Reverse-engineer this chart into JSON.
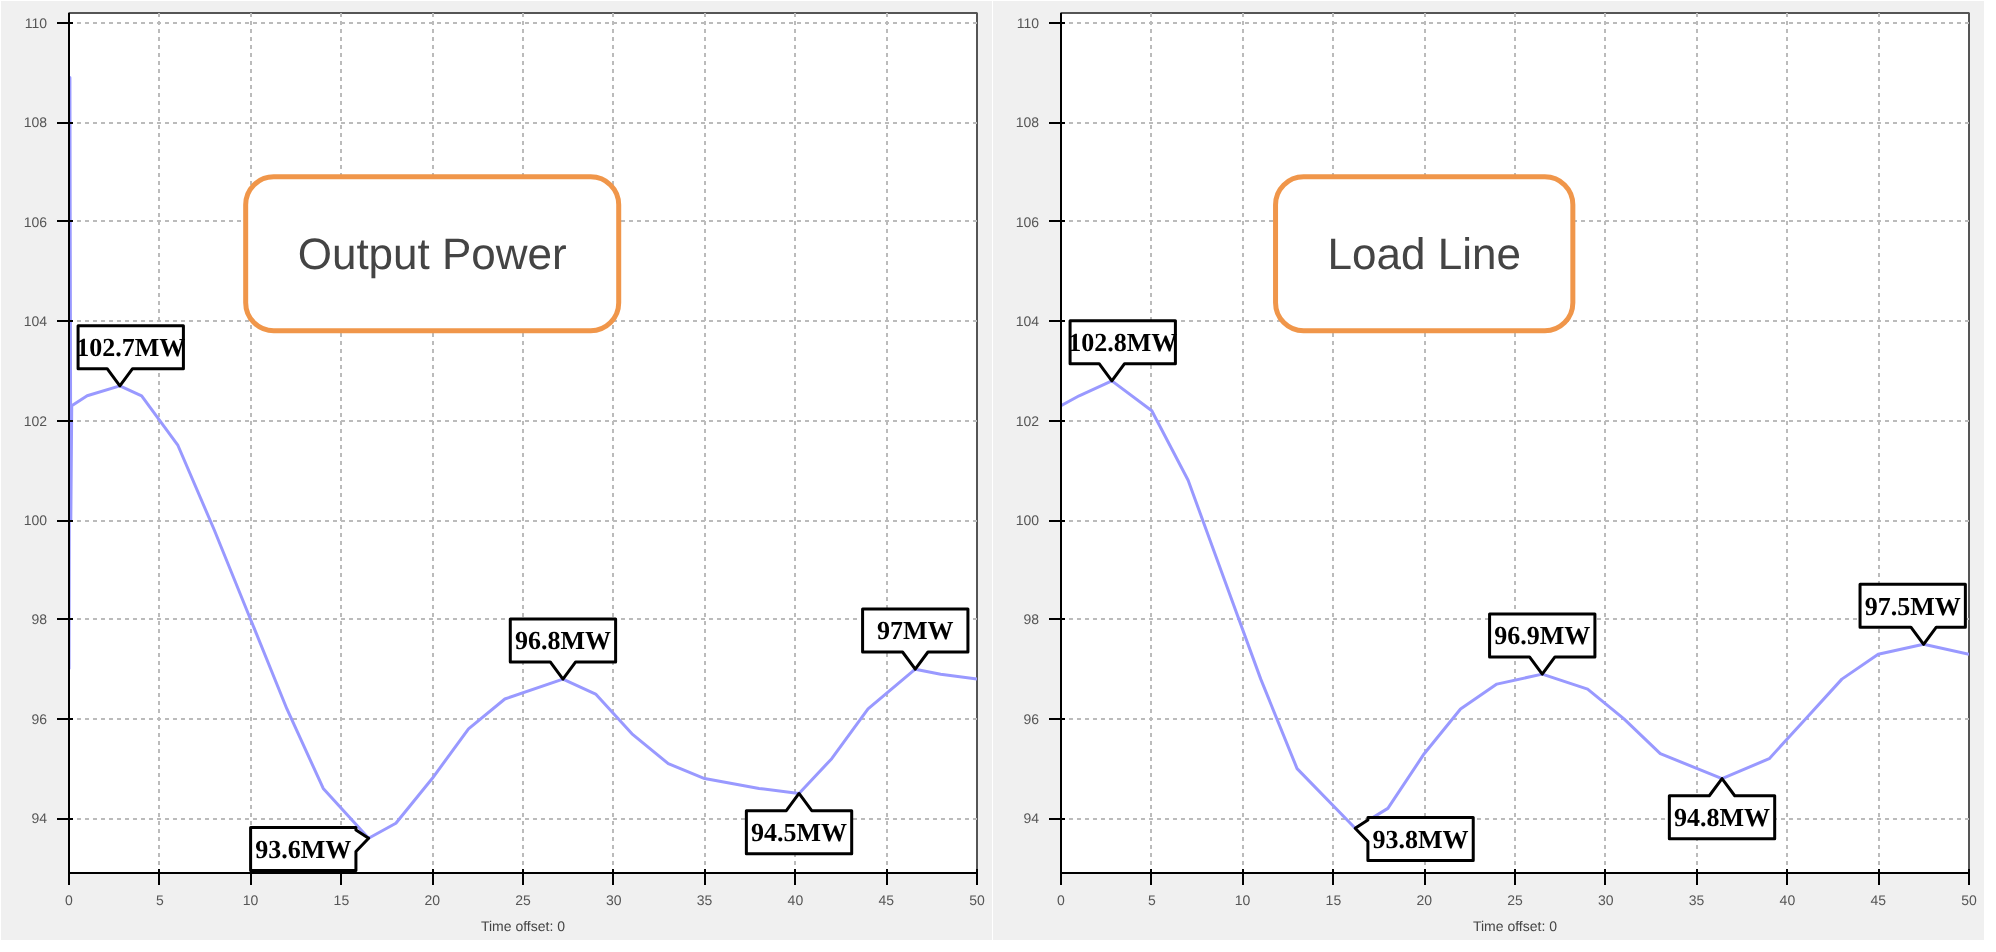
{
  "chart_data": [
    {
      "type": "line",
      "title": "Output Power",
      "xlabel": "Time offset: 0",
      "x": [
        0,
        0.05,
        0.1,
        0.15,
        1,
        2.8,
        4,
        6,
        8,
        10,
        12,
        14,
        16.5,
        18,
        20,
        22,
        24,
        27.2,
        29,
        31,
        33,
        35,
        38,
        40.2,
        42,
        44,
        46.6,
        48,
        50
      ],
      "series": [
        {
          "color": "#9999ff",
          "values": [
            97,
            108.9,
            100,
            102.3,
            102.5,
            102.7,
            102.5,
            101.5,
            99.8,
            98,
            96.2,
            94.6,
            93.6,
            93.9,
            94.8,
            95.8,
            96.4,
            96.8,
            96.5,
            95.7,
            95.1,
            94.8,
            94.6,
            94.5,
            95.2,
            96.2,
            97,
            96.9,
            96.8
          ]
        }
      ],
      "xlim": [
        0,
        50
      ],
      "ylim": [
        92.9,
        110.2
      ],
      "xticks": [
        0,
        5,
        10,
        15,
        20,
        25,
        30,
        35,
        40,
        45,
        50
      ],
      "yticks": [
        94,
        96,
        98,
        100,
        102,
        104,
        106,
        108,
        110
      ],
      "grid": true,
      "annotations": [
        {
          "text": "102.7MW",
          "x": 2.8,
          "y": 102.7
        },
        {
          "text": "93.6MW",
          "x": 16.5,
          "y": 93.6
        },
        {
          "text": "96.8MW",
          "x": 27.2,
          "y": 96.8
        },
        {
          "text": "94.5MW",
          "x": 40.2,
          "y": 94.5
        },
        {
          "text": "97MW",
          "x": 46.6,
          "y": 97
        }
      ]
    },
    {
      "type": "line",
      "title": "Load Line",
      "xlabel": "Time offset: 0",
      "x": [
        0,
        1,
        2.8,
        5,
        7,
        9,
        11,
        13,
        16.2,
        18,
        20,
        22,
        24,
        26.5,
        29,
        31,
        33,
        36.4,
        39,
        41,
        43,
        45,
        47.5,
        50
      ],
      "series": [
        {
          "color": "#9999ff",
          "values": [
            102.3,
            102.5,
            102.8,
            102.2,
            100.8,
            98.8,
            96.8,
            95,
            93.8,
            94.2,
            95.3,
            96.2,
            96.7,
            96.9,
            96.6,
            96,
            95.3,
            94.8,
            95.2,
            96,
            96.8,
            97.3,
            97.5,
            97.3
          ]
        }
      ],
      "xlim": [
        0,
        50
      ],
      "ylim": [
        92.9,
        110.2
      ],
      "xticks": [
        0,
        5,
        10,
        15,
        20,
        25,
        30,
        35,
        40,
        45,
        50
      ],
      "yticks": [
        94,
        96,
        98,
        100,
        102,
        104,
        106,
        108,
        110
      ],
      "grid": true,
      "annotations": [
        {
          "text": "102.8MW",
          "x": 2.8,
          "y": 102.8
        },
        {
          "text": "93.8MW",
          "x": 16.2,
          "y": 93.8
        },
        {
          "text": "96.9MW",
          "x": 26.5,
          "y": 96.9
        },
        {
          "text": "94.8MW",
          "x": 36.4,
          "y": 94.8
        },
        {
          "text": "97.5MW",
          "x": 47.5,
          "y": 97.5
        }
      ]
    }
  ]
}
